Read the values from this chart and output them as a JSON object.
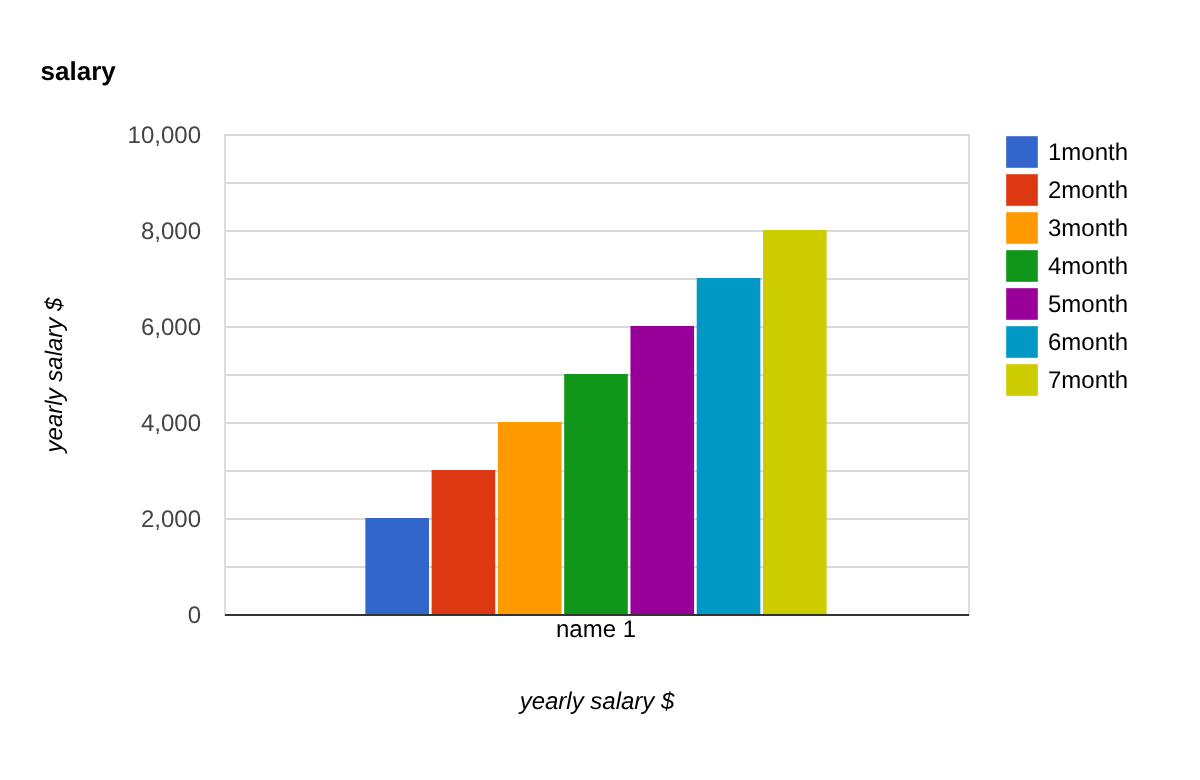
{
  "chart_data": {
    "type": "bar",
    "title": "salary",
    "xlabel": "yearly salary $",
    "ylabel": "yearly salary $",
    "categories": [
      "name 1"
    ],
    "series": [
      {
        "name": "1month",
        "color": "#3366cc",
        "values": [
          2000
        ]
      },
      {
        "name": "2month",
        "color": "#dc3912",
        "values": [
          3000
        ]
      },
      {
        "name": "3month",
        "color": "#ff9900",
        "values": [
          4000
        ]
      },
      {
        "name": "4month",
        "color": "#109618",
        "values": [
          5000
        ]
      },
      {
        "name": "5month",
        "color": "#990099",
        "values": [
          6000
        ]
      },
      {
        "name": "6month",
        "color": "#0099c6",
        "values": [
          7000
        ]
      },
      {
        "name": "7month",
        "color": "#cccc00",
        "values": [
          8000
        ]
      }
    ],
    "ylim": [
      0,
      10000
    ],
    "yticks": [
      0,
      {
        "value": 1000,
        "label": null
      },
      {
        "value": 2000,
        "label": "2,000"
      },
      {
        "value": 3000,
        "label": null
      },
      {
        "value": 4000,
        "label": "4,000"
      },
      {
        "value": 5000,
        "label": null
      },
      {
        "value": 6000,
        "label": "6,000"
      },
      {
        "value": 7000,
        "label": null
      },
      {
        "value": 8000,
        "label": "8,000"
      },
      {
        "value": 9000,
        "label": null
      },
      {
        "value": 10000,
        "label": "10,000"
      }
    ],
    "grid": "y",
    "legend": "top right"
  }
}
